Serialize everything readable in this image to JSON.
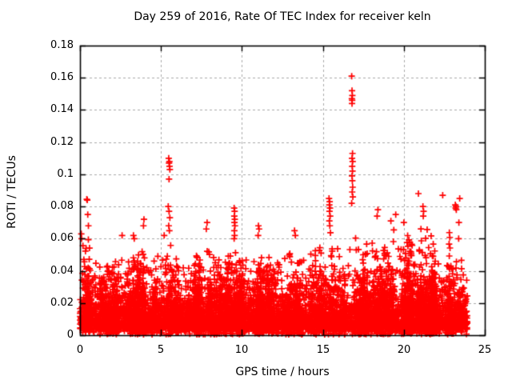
{
  "chart_data": {
    "type": "scatter",
    "title": "Day 259 of 2016, Rate Of TEC Index for receiver keln",
    "xlabel": "GPS time / hours",
    "ylabel": "ROTI / TECUs",
    "xlim": [
      0,
      25
    ],
    "ylim": [
      0,
      0.18
    ],
    "xticks": {
      "values": [
        0,
        5,
        10,
        15,
        20,
        25
      ],
      "labels": [
        "0",
        "5",
        "10",
        "15",
        "20",
        "25"
      ]
    },
    "yticks": {
      "values": [
        0,
        0.02,
        0.04,
        0.06,
        0.08,
        0.1,
        0.12,
        0.14,
        0.16,
        0.18
      ],
      "labels": [
        "0",
        "0.02",
        "0.04",
        "0.06",
        "0.08",
        "0.1",
        "0.12",
        "0.14",
        "0.16",
        "0.18"
      ]
    },
    "grid": {
      "show": true,
      "style": "dashed",
      "color": "#a9a9a9"
    },
    "axis_color": "#000000",
    "marker": {
      "shape": "plus",
      "color": "#ff0000",
      "half_size": 4,
      "stroke": 1.7
    },
    "band": {
      "seed": 2016259,
      "n_points": 8200,
      "x_range": [
        0,
        23.92
      ],
      "y_min": 0.0035,
      "y_floor": 0.0005,
      "low_fraction": 0.05,
      "exp_mean": 0.011,
      "clusters": {
        "count": 70,
        "fraction": 0.45,
        "spread": 0.09,
        "mean_boost": 1.35
      },
      "envelope": [
        [
          0,
          0.055
        ],
        [
          0.5,
          0.06
        ],
        [
          1,
          0.048
        ],
        [
          1.5,
          0.043
        ],
        [
          2,
          0.045
        ],
        [
          2.5,
          0.05
        ],
        [
          3,
          0.046
        ],
        [
          3.5,
          0.055
        ],
        [
          4,
          0.058
        ],
        [
          4.5,
          0.05
        ],
        [
          5,
          0.052
        ],
        [
          5.5,
          0.06
        ],
        [
          6,
          0.05
        ],
        [
          6.5,
          0.045
        ],
        [
          7,
          0.05
        ],
        [
          7.5,
          0.055
        ],
        [
          8,
          0.052
        ],
        [
          8.5,
          0.048
        ],
        [
          9,
          0.05
        ],
        [
          9.5,
          0.058
        ],
        [
          10,
          0.05
        ],
        [
          10.5,
          0.045
        ],
        [
          11,
          0.055
        ],
        [
          11.5,
          0.048
        ],
        [
          12,
          0.05
        ],
        [
          12.5,
          0.045
        ],
        [
          13,
          0.055
        ],
        [
          13.5,
          0.05
        ],
        [
          14,
          0.048
        ],
        [
          14.5,
          0.055
        ],
        [
          15,
          0.06
        ],
        [
          15.5,
          0.066
        ],
        [
          16,
          0.055
        ],
        [
          16.5,
          0.06
        ],
        [
          17,
          0.062
        ],
        [
          17.5,
          0.055
        ],
        [
          18,
          0.06
        ],
        [
          18.5,
          0.065
        ],
        [
          19,
          0.06
        ],
        [
          19.5,
          0.07
        ],
        [
          20,
          0.066
        ],
        [
          20.5,
          0.06
        ],
        [
          21,
          0.07
        ],
        [
          21.5,
          0.066
        ],
        [
          22,
          0.058
        ],
        [
          22.5,
          0.06
        ],
        [
          23,
          0.068
        ],
        [
          23.4,
          0.062
        ],
        [
          23.9,
          0.055
        ]
      ]
    },
    "spikes": [
      [
        0.08,
        0.063
      ],
      [
        0.1,
        0.06
      ],
      [
        0.42,
        0.0845
      ],
      [
        0.45,
        0.084
      ],
      [
        0.48,
        0.075
      ],
      [
        0.52,
        0.068
      ],
      [
        2.6,
        0.062
      ],
      [
        3.3,
        0.062
      ],
      [
        3.35,
        0.06
      ],
      [
        3.92,
        0.068
      ],
      [
        3.95,
        0.072
      ],
      [
        5.2,
        0.062
      ],
      [
        5.48,
        0.11
      ],
      [
        5.5,
        0.107
      ],
      [
        5.52,
        0.108
      ],
      [
        5.53,
        0.105
      ],
      [
        5.55,
        0.103
      ],
      [
        5.5,
        0.097
      ],
      [
        5.45,
        0.08
      ],
      [
        5.5,
        0.077
      ],
      [
        5.55,
        0.073
      ],
      [
        5.48,
        0.068
      ],
      [
        5.52,
        0.065
      ],
      [
        7.85,
        0.07
      ],
      [
        7.8,
        0.066
      ],
      [
        9.52,
        0.079
      ],
      [
        9.55,
        0.077
      ],
      [
        9.53,
        0.074
      ],
      [
        9.56,
        0.072
      ],
      [
        9.54,
        0.07
      ],
      [
        9.57,
        0.068
      ],
      [
        9.53,
        0.065
      ],
      [
        9.55,
        0.062
      ],
      [
        9.52,
        0.06
      ],
      [
        11.02,
        0.068
      ],
      [
        11.06,
        0.066
      ],
      [
        11.0,
        0.062
      ],
      [
        13.25,
        0.065
      ],
      [
        13.3,
        0.062
      ],
      [
        15.38,
        0.085
      ],
      [
        15.42,
        0.083
      ],
      [
        15.4,
        0.081
      ],
      [
        15.44,
        0.079
      ],
      [
        15.41,
        0.077
      ],
      [
        15.45,
        0.074
      ],
      [
        15.4,
        0.071
      ],
      [
        15.43,
        0.068
      ],
      [
        16.78,
        0.161
      ],
      [
        16.8,
        0.152
      ],
      [
        16.82,
        0.149
      ],
      [
        16.79,
        0.147
      ],
      [
        16.81,
        0.146
      ],
      [
        16.8,
        0.144
      ],
      [
        16.83,
        0.113
      ],
      [
        16.8,
        0.11
      ],
      [
        16.84,
        0.108
      ],
      [
        16.81,
        0.105
      ],
      [
        16.83,
        0.102
      ],
      [
        16.8,
        0.099
      ],
      [
        16.82,
        0.096
      ],
      [
        16.84,
        0.092
      ],
      [
        16.81,
        0.089
      ],
      [
        16.85,
        0.086
      ],
      [
        16.78,
        0.082
      ],
      [
        18.4,
        0.078
      ],
      [
        18.35,
        0.074
      ],
      [
        19.2,
        0.071
      ],
      [
        19.5,
        0.075
      ],
      [
        20.0,
        0.07
      ],
      [
        20.9,
        0.088
      ],
      [
        21.18,
        0.08
      ],
      [
        21.22,
        0.077
      ],
      [
        21.2,
        0.074
      ],
      [
        22.4,
        0.087
      ],
      [
        23.18,
        0.081
      ],
      [
        23.22,
        0.08
      ],
      [
        23.2,
        0.079
      ],
      [
        23.24,
        0.078
      ],
      [
        23.45,
        0.085
      ],
      [
        23.4,
        0.07
      ]
    ]
  }
}
